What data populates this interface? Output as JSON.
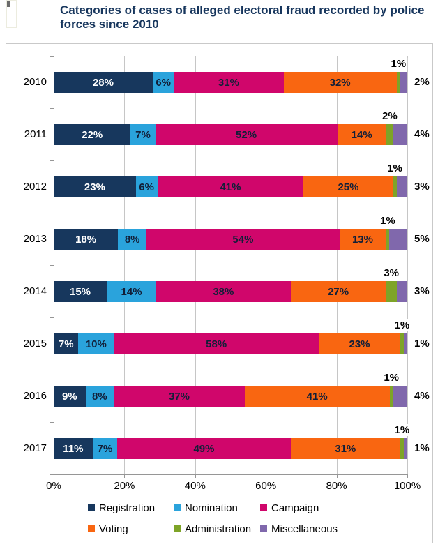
{
  "title": {
    "text": "Categories of cases of alleged electoral fraud recorded by police forces since 2010"
  },
  "label_suffix": "%",
  "chart_data": {
    "type": "bar",
    "orientation": "horizontal",
    "stacked": true,
    "title": "Categories of cases of alleged electoral fraud recorded by police forces since 2010",
    "categories": [
      "2010",
      "2011",
      "2012",
      "2013",
      "2014",
      "2015",
      "2016",
      "2017"
    ],
    "series": [
      {
        "name": "Registration",
        "color": "#17375D",
        "values": [
          28,
          22,
          23,
          18,
          15,
          7,
          9,
          11
        ]
      },
      {
        "name": "Nomination",
        "color": "#2AA3DC",
        "values": [
          6,
          7,
          6,
          8,
          14,
          10,
          8,
          7
        ]
      },
      {
        "name": "Campaign",
        "color": "#D0066B",
        "values": [
          31,
          52,
          41,
          54,
          38,
          58,
          37,
          49
        ]
      },
      {
        "name": "Voting",
        "color": "#F96611",
        "values": [
          32,
          14,
          25,
          13,
          27,
          23,
          41,
          31
        ]
      },
      {
        "name": "Administration",
        "color": "#7EA428",
        "values": [
          1,
          2,
          1,
          1,
          3,
          1,
          1,
          1
        ]
      },
      {
        "name": "Miscellaneous",
        "color": "#8068AC",
        "values": [
          2,
          4,
          3,
          5,
          3,
          1,
          4,
          1
        ]
      }
    ],
    "x_axis": {
      "min": 0,
      "max": 100,
      "ticks": [
        "0%",
        "20%",
        "40%",
        "60%",
        "80%",
        "100%"
      ],
      "grid": true
    },
    "legend": {
      "position": "bottom",
      "items": [
        "Registration",
        "Nomination",
        "Campaign",
        "Voting",
        "Administration",
        "Miscellaneous"
      ]
    },
    "data_label_style": {
      "inline_series": [
        "Registration",
        "Nomination",
        "Campaign",
        "Voting"
      ],
      "above_bar_series": "Administration",
      "right_of_bar_series": "Miscellaneous",
      "inline_text_on_registration": "#FFFFFF",
      "inline_text_dark": "#121F38"
    }
  }
}
